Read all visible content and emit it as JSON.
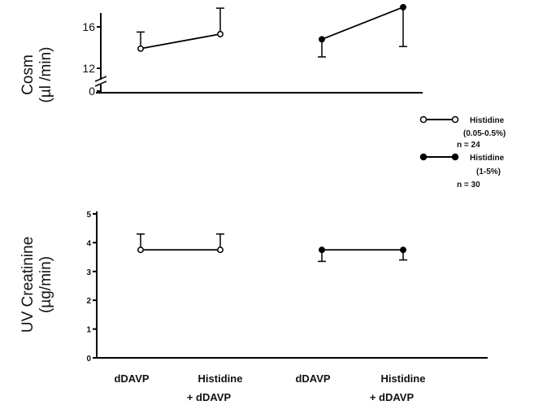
{
  "chart_data": [
    {
      "type": "line",
      "ylabel_line1": "Cosm",
      "ylabel_line2": "(µl /min)",
      "yticks": [
        0,
        12,
        16
      ],
      "ylim": [
        11,
        18
      ],
      "axis_break": true,
      "series": [
        {
          "name": "Histidine (0.05-0.5%) n=24",
          "marker": "open",
          "points": [
            {
              "category": "dDAVP",
              "value": 13.9,
              "err_low": 13.9,
              "err_high": 15.5
            },
            {
              "category": "Histidine + dDAVP",
              "value": 15.3,
              "err_low": 15.3,
              "err_high": 17.8
            }
          ]
        },
        {
          "name": "Histidine (1-5%) n=30",
          "marker": "filled",
          "points": [
            {
              "category": "dDAVP",
              "value": 14.8,
              "err_low": 13.1,
              "err_high": 14.8
            },
            {
              "category": "Histidine + dDAVP",
              "value": 17.9,
              "err_low": 14.1,
              "err_high": 17.9
            }
          ]
        }
      ]
    },
    {
      "type": "line",
      "ylabel_line1": "UV Creatinine",
      "ylabel_line2": "(µg/min)",
      "yticks": [
        0,
        1,
        2,
        3,
        4,
        5
      ],
      "ylim": [
        0,
        5
      ],
      "series": [
        {
          "name": "Histidine (0.05-0.5%) n=24",
          "marker": "open",
          "points": [
            {
              "category": "dDAVP",
              "value": 3.75,
              "err_low": 3.75,
              "err_high": 4.3
            },
            {
              "category": "Histidine + dDAVP",
              "value": 3.75,
              "err_low": 3.75,
              "err_high": 4.3
            }
          ]
        },
        {
          "name": "Histidine (1-5%) n=30",
          "marker": "filled",
          "points": [
            {
              "category": "dDAVP",
              "value": 3.75,
              "err_low": 3.35,
              "err_high": 3.75
            },
            {
              "category": "Histidine + dDAVP",
              "value": 3.75,
              "err_low": 3.4,
              "err_high": 3.75
            }
          ]
        }
      ]
    }
  ],
  "categories": [
    {
      "line1": "dDAVP",
      "line2": ""
    },
    {
      "line1": "Histidine",
      "line2": "+ dDAVP"
    },
    {
      "line1": "dDAVP",
      "line2": ""
    },
    {
      "line1": "Histidine",
      "line2": "+ dDAVP"
    }
  ],
  "legend": [
    {
      "marker": "open",
      "label": "Histidine",
      "sub": "(0.05-0.5%)",
      "n": "n = 24"
    },
    {
      "marker": "filled",
      "label": "Histidine",
      "sub": "(1-5%)",
      "n": "n = 30"
    }
  ]
}
